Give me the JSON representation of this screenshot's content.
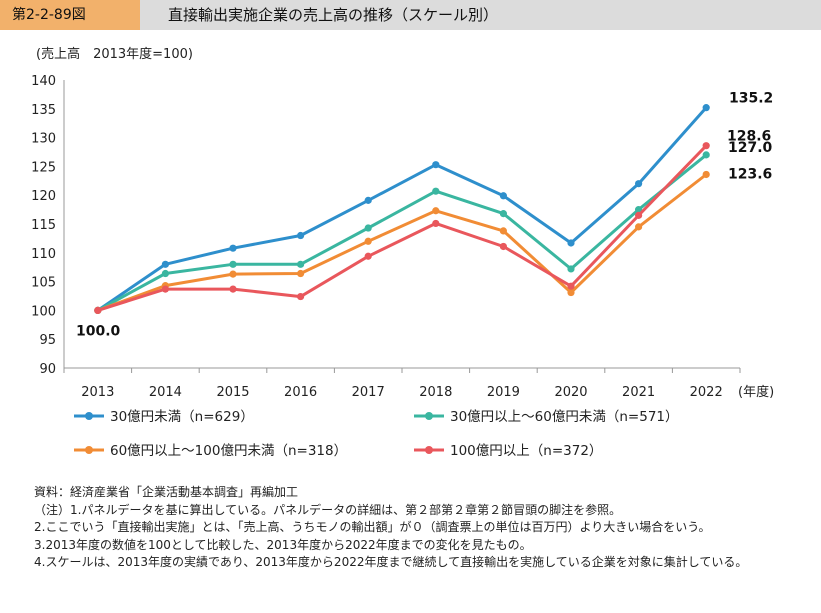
{
  "header": {
    "figure_label": "第2-2-89図",
    "title": "直接輸出実施企業の売上高の推移（スケール別）"
  },
  "chart_data": {
    "type": "line",
    "ylabel": "(売上高　2013年度=100)",
    "xlabel": "(年度)",
    "x": [
      "2013",
      "2014",
      "2015",
      "2016",
      "2017",
      "2018",
      "2019",
      "2020",
      "2021",
      "2022"
    ],
    "ylim": [
      90,
      140
    ],
    "yticks": [
      90,
      95,
      100,
      105,
      110,
      115,
      120,
      125,
      130,
      135,
      140
    ],
    "grid": false,
    "series": [
      {
        "name": "30億円未満（n=629）",
        "color": "#2e8fcc",
        "values": [
          100.0,
          108.0,
          110.8,
          113.0,
          119.1,
          125.3,
          119.9,
          111.7,
          122.0,
          135.2
        ]
      },
      {
        "name": "30億円以上～60億円未満（n=571）",
        "color": "#3ab6a0",
        "values": [
          100.0,
          106.4,
          108.0,
          108.0,
          114.3,
          120.7,
          116.8,
          107.2,
          117.5,
          127.0
        ]
      },
      {
        "name": "60億円以上～100億円未満（n=318）",
        "color": "#f18c35",
        "values": [
          100.0,
          104.3,
          106.3,
          106.4,
          112.0,
          117.3,
          113.8,
          103.1,
          114.5,
          123.6
        ]
      },
      {
        "name": "100億円以上（n=372）",
        "color": "#e9575c",
        "values": [
          100.0,
          103.7,
          103.7,
          102.4,
          109.4,
          115.1,
          111.1,
          104.2,
          116.5,
          128.6
        ]
      }
    ],
    "annotations": {
      "start": "100.0",
      "ends": [
        "135.2",
        "127.0",
        "123.6",
        "128.6"
      ]
    }
  },
  "notes": [
    "資料：経済産業省「企業活動基本調査」再編加工",
    "（注）1.パネルデータを基に算出している。パネルデータの詳細は、第２部第２章第２節冒頭の脚注を参照。",
    "2.ここでいう「直接輸出実施」とは、「売上高、うちモノの輸出額」が０（調査票上の単位は百万円）より大きい場合をいう。",
    "3.2013年度の数値を100として比較した、2013年度から2022年度までの変化を見たもの。",
    "4.スケールは、2013年度の実績であり、2013年度から2022年度まで継続して直接輸出を実施している企業を対象に集計している。"
  ]
}
